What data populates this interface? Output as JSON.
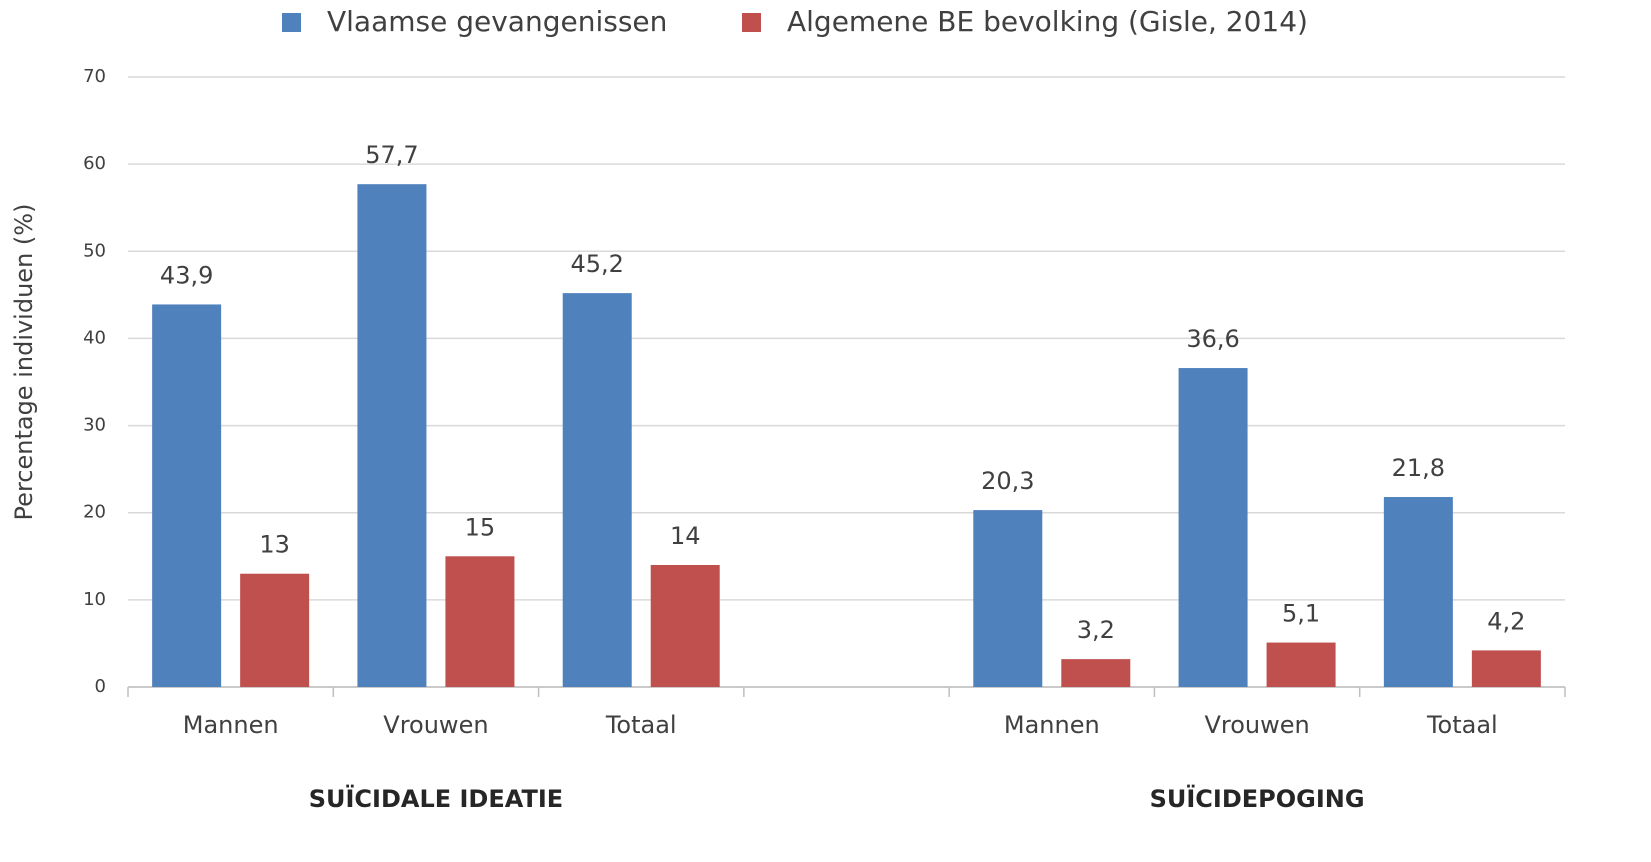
{
  "chart_data": {
    "type": "bar",
    "y_label": "Percentage individuen (%)",
    "categories": [
      "Mannen",
      "Vrouwen",
      "Totaal",
      null,
      "Mannen",
      "Vrouwen",
      "Totaal"
    ],
    "group_labels": [
      "SUÏCIDALE IDEATIE",
      "SUÏCIDEPOGING"
    ],
    "series": [
      {
        "name": "Vlaamse gevangenissen",
        "color": "#4f81bd",
        "values": [
          43.9,
          57.7,
          45.2,
          null,
          20.3,
          36.6,
          21.8
        ],
        "value_labels": [
          "43,9",
          "57,7",
          "45,2",
          null,
          "20,3",
          "36,6",
          "21,8"
        ]
      },
      {
        "name": "Algemene BE bevolking (Gisle, 2014)",
        "color": "#c0504d",
        "values": [
          13,
          15,
          14,
          null,
          3.2,
          5.1,
          4.2
        ],
        "value_labels": [
          "13",
          "15",
          "14",
          null,
          "3,2",
          "5,1",
          "4,2"
        ]
      }
    ],
    "ylim": [
      0,
      70
    ],
    "yticks": [
      0,
      10,
      20,
      30,
      40,
      50,
      60,
      70
    ],
    "grid": true,
    "legend": "top"
  }
}
